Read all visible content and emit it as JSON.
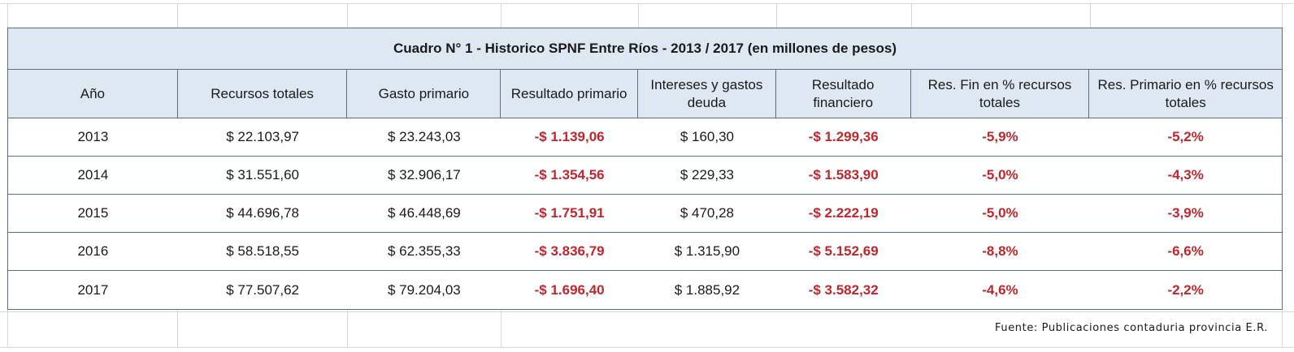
{
  "title": "Cuadro N° 1 - Historico SPNF Entre Ríos - 2013 / 2017 (en millones de pesos)",
  "headers": [
    "Año",
    "Recursos totales",
    "Gasto primario",
    "Resultado primario",
    "Intereses y gastos deuda",
    "Resultado financiero",
    "Res. Fin en % recursos totales",
    "Res. Primario en % recursos totales"
  ],
  "rows": [
    [
      "2013",
      "$ 22.103,97",
      "$ 23.243,03",
      "-$ 1.139,06",
      "$ 160,30",
      "-$ 1.299,36",
      "-5,9%",
      "-5,2%"
    ],
    [
      "2014",
      "$ 31.551,60",
      "$ 32.906,17",
      "-$ 1.354,56",
      "$ 229,33",
      "-$ 1.583,90",
      "-5,0%",
      "-4,3%"
    ],
    [
      "2015",
      "$ 44.696,78",
      "$ 46.448,69",
      "-$ 1.751,91",
      "$ 470,28",
      "-$ 2.222,19",
      "-5,0%",
      "-3,9%"
    ],
    [
      "2016",
      "$ 58.518,55",
      "$ 62.355,33",
      "-$ 3.836,79",
      "$ 1.315,90",
      "-$ 5.152,69",
      "-8,8%",
      "-6,6%"
    ],
    [
      "2017",
      "$ 77.507,62",
      "$ 79.204,03",
      "-$ 1.696,40",
      "$ 1.885,92",
      "-$ 3.582,32",
      "-4,6%",
      "-2,2%"
    ]
  ],
  "source": "Fuente: Publicaciones contaduria provincia E.R.",
  "colors": {
    "header_bg": "#dde8f2",
    "border": "#5a6f86",
    "negative": "#c0272d",
    "gridline": "#d6d6d6"
  }
}
